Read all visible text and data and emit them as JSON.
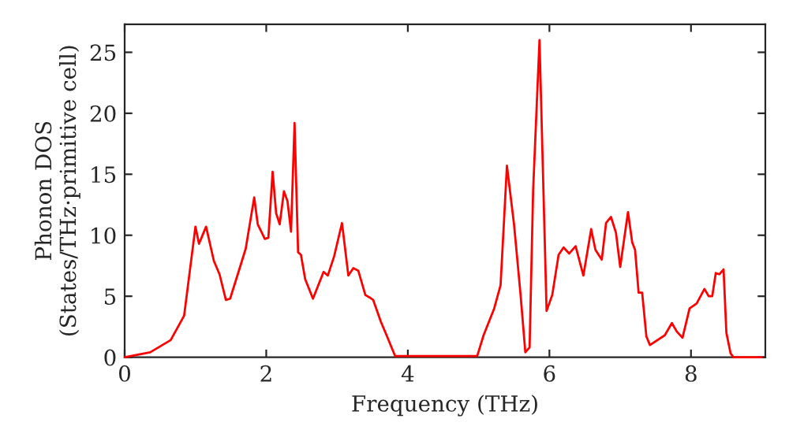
{
  "chart_data": {
    "type": "line",
    "xlabel": "Frequency (THz)",
    "ylabel": "Phonon DOS\n(States/THz·primitive cell)",
    "xlim": [
      0,
      9.05
    ],
    "ylim": [
      0,
      27.3
    ],
    "xticks": [
      0,
      2,
      4,
      6,
      8
    ],
    "yticks": [
      0,
      5,
      10,
      15,
      20,
      25
    ],
    "grid": false,
    "marker": "none",
    "line_style": "solid",
    "series": [
      {
        "color": "#ff0000",
        "x": [
          0,
          0.36,
          0.65,
          0.84,
          1.0,
          1.05,
          1.15,
          1.26,
          1.34,
          1.43,
          1.49,
          1.63,
          1.71,
          1.83,
          1.88,
          1.98,
          2.03,
          2.09,
          2.14,
          2.19,
          2.25,
          2.3,
          2.35,
          2.4,
          2.45,
          2.49,
          2.55,
          2.66,
          2.81,
          2.87,
          2.96,
          3.07,
          3.16,
          3.23,
          3.3,
          3.4,
          3.46,
          3.51,
          3.62,
          3.7,
          3.82,
          4.98,
          5.07,
          5.22,
          5.31,
          5.4,
          5.5,
          5.59,
          5.66,
          5.72,
          5.77,
          5.86,
          5.96,
          6.04,
          6.13,
          6.2,
          6.28,
          6.37,
          6.48,
          6.59,
          6.65,
          6.74,
          6.8,
          6.87,
          6.94,
          7.0,
          7.11,
          7.17,
          7.21,
          7.26,
          7.31,
          7.37,
          7.42,
          7.63,
          7.73,
          7.8,
          7.88,
          7.98,
          8.08,
          8.19,
          8.25,
          8.3,
          8.35,
          8.4,
          8.46,
          8.5,
          8.56,
          8.6,
          9.0
        ],
        "values": [
          0,
          0.4,
          1.4,
          3.4,
          10.7,
          9.3,
          10.7,
          7.9,
          6.8,
          4.7,
          4.8,
          7.4,
          8.9,
          13.1,
          10.9,
          9.7,
          9.8,
          15.2,
          11.8,
          10.9,
          13.6,
          12.8,
          10.3,
          19.2,
          8.6,
          8.4,
          6.4,
          4.8,
          7.0,
          6.7,
          8.3,
          11.0,
          6.7,
          7.3,
          7.1,
          5.1,
          4.9,
          4.7,
          2.9,
          1.8,
          0.1,
          0.1,
          1.8,
          4.0,
          5.9,
          15.7,
          10.9,
          5.3,
          0.4,
          0.8,
          13.7,
          26.0,
          3.8,
          5.1,
          8.4,
          9.0,
          8.5,
          9.1,
          6.7,
          10.5,
          8.8,
          8.0,
          11.0,
          11.5,
          10.2,
          7.4,
          11.9,
          9.4,
          8.8,
          5.3,
          5.3,
          1.7,
          1.0,
          1.8,
          2.8,
          2.1,
          1.6,
          4.0,
          4.4,
          5.6,
          5.0,
          5.0,
          6.9,
          6.8,
          7.2,
          2.0,
          0.3,
          0,
          0
        ]
      }
    ]
  }
}
